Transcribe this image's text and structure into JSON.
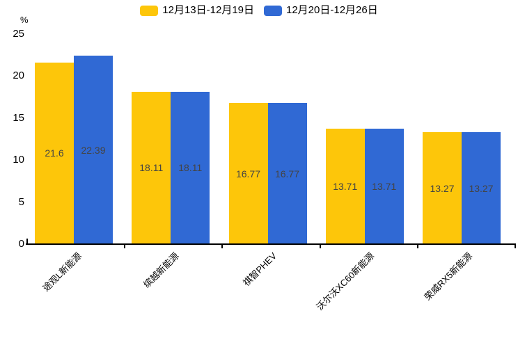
{
  "chart_data": {
    "type": "bar",
    "title": "",
    "unit_label": "%",
    "categories": [
      "途观L新能源",
      "缤越新能源",
      "祺智PHEV",
      "沃尔沃XC60新能源",
      "荣威RX5新能源"
    ],
    "series": [
      {
        "name": "12月13日-12月19日",
        "color": "#FDC60A",
        "values": [
          21.6,
          18.11,
          16.77,
          13.71,
          13.27
        ]
      },
      {
        "name": "12月20日-12月26日",
        "color": "#3069D4",
        "values": [
          22.39,
          18.11,
          16.77,
          13.71,
          13.27
        ]
      }
    ],
    "yticks": [
      0,
      5,
      10,
      15,
      20,
      25
    ],
    "ylim": [
      0,
      25
    ],
    "grid": false,
    "legend_position": "top-center",
    "value_labels": true,
    "value_label_color": "#444444",
    "axis_color": "#000000",
    "background_color": "#ffffff",
    "xlabel_rotation_deg": -45
  }
}
